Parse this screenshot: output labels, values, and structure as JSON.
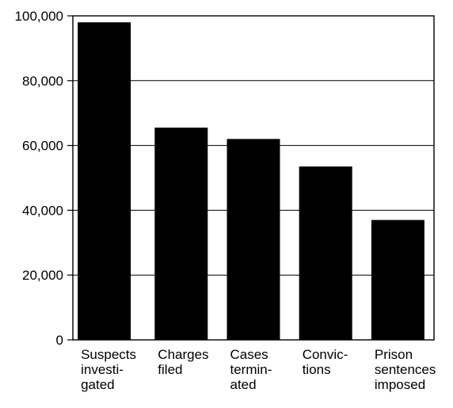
{
  "chart_data": {
    "type": "bar",
    "title": "",
    "xlabel": "",
    "ylabel": "",
    "categories": [
      [
        "Suspects",
        "investi-",
        "gated"
      ],
      [
        "Charges",
        "filed"
      ],
      [
        "Cases",
        "termin-",
        "ated"
      ],
      [
        "Convic-",
        "tions"
      ],
      [
        "Prison",
        "sentences",
        "imposed"
      ]
    ],
    "values": [
      98000,
      65500,
      62000,
      53500,
      37000
    ],
    "ylim": [
      0,
      100000
    ],
    "yticks": [
      0,
      20000,
      40000,
      60000,
      80000,
      100000
    ],
    "ytick_labels": [
      "0",
      "20,000",
      "40,000",
      "60,000",
      "80,000",
      "100,000"
    ],
    "grid": true,
    "legend": "none",
    "colors": {
      "bar": "#000000",
      "axis": "#000000",
      "grid": "#000000",
      "background": "#ffffff"
    }
  }
}
